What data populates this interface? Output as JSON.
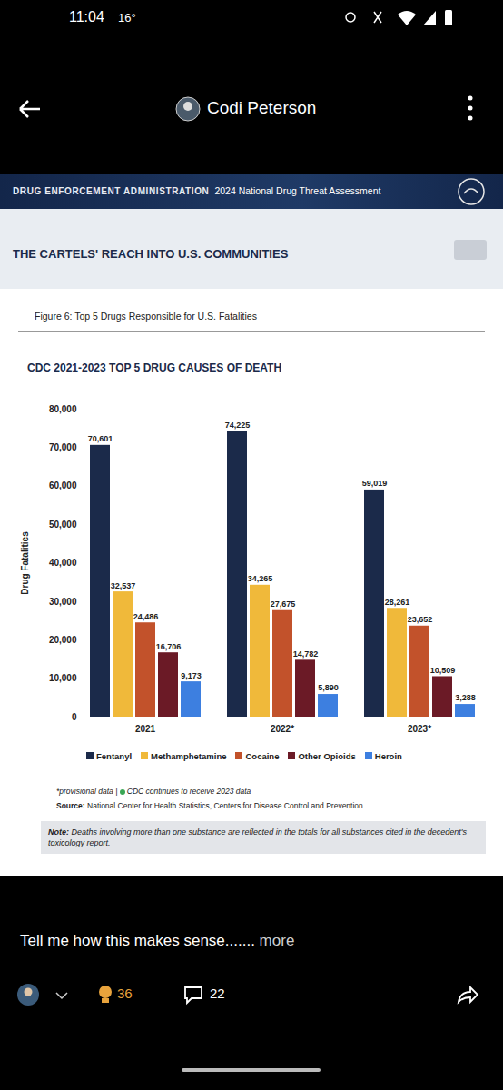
{
  "screen": {
    "status_time": "11:04",
    "status_temp": "16°",
    "author": "Codi Peterson",
    "caption": "Tell me how this makes sense.......",
    "more": "more",
    "likes": 36,
    "comments": 22
  },
  "slide": {
    "banner_org": "DRUG ENFORCEMENT ADMINISTRATION",
    "banner_report": "2024 National Drug Threat Assessment",
    "section": "THE CARTELS' REACH INTO U.S. COMMUNITIES",
    "figure": "Figure 6: Top 5 Drugs Responsible for U.S. Fatalities",
    "footnote": "*provisional data",
    "separator": "|",
    "footnote2": "CDC continues to receive 2023 data",
    "source_label": "Source:",
    "source": "National Center for Health Statistics, Centers for Disease Control and Prevention",
    "note_label": "Note:",
    "note": "Deaths involving more than one substance are reflected in the totals for all substances cited in the decedent's toxicology report."
  },
  "chart_data": {
    "type": "bar",
    "title": "CDC 2021-2023 TOP 5 DRUG CAUSES OF DEATH",
    "y_label": "Drug Fatalities",
    "categories": [
      "2021",
      "2022*",
      "2023*"
    ],
    "series": [
      {
        "name": "Fentanyl",
        "color": "#1b2a4a",
        "values": [
          70601,
          74225,
          59019
        ],
        "value_labels": [
          "70,601",
          "74,225",
          "59,019"
        ]
      },
      {
        "name": "Methamphetamine",
        "color": "#f0b93a",
        "values": [
          32537,
          34265,
          28261
        ],
        "value_labels": [
          "32,537",
          "34,265",
          "28,261"
        ]
      },
      {
        "name": "Cocaine",
        "color": "#c2522b",
        "values": [
          24486,
          27675,
          23652
        ],
        "value_labels": [
          "24,486",
          "27,675",
          "23,652"
        ]
      },
      {
        "name": "Other Opioids",
        "color": "#6b1a26",
        "values": [
          16706,
          14782,
          10509
        ],
        "value_labels": [
          "16,706",
          "14,782",
          "10,509"
        ]
      },
      {
        "name": "Heroin",
        "color": "#3d7fe0",
        "values": [
          9173,
          5890,
          3288
        ],
        "value_labels": [
          "9,173",
          "5,890",
          "3,288"
        ]
      }
    ],
    "ylim": [
      0,
      80000
    ],
    "yticks": [
      0,
      {
        "value": 10000,
        "label": "10,000"
      },
      {
        "value": 20000,
        "label": "20,000"
      },
      {
        "value": 30000,
        "label": "30,000"
      },
      {
        "value": 40000,
        "label": "40,000"
      },
      {
        "value": 50000,
        "label": "50,000"
      },
      {
        "value": 60000,
        "label": "60,000"
      },
      {
        "value": 70000,
        "label": "70,000"
      },
      {
        "value": 80000,
        "label": "80,000"
      }
    ],
    "data_labels": true,
    "legend": "bottom",
    "grid": false
  }
}
